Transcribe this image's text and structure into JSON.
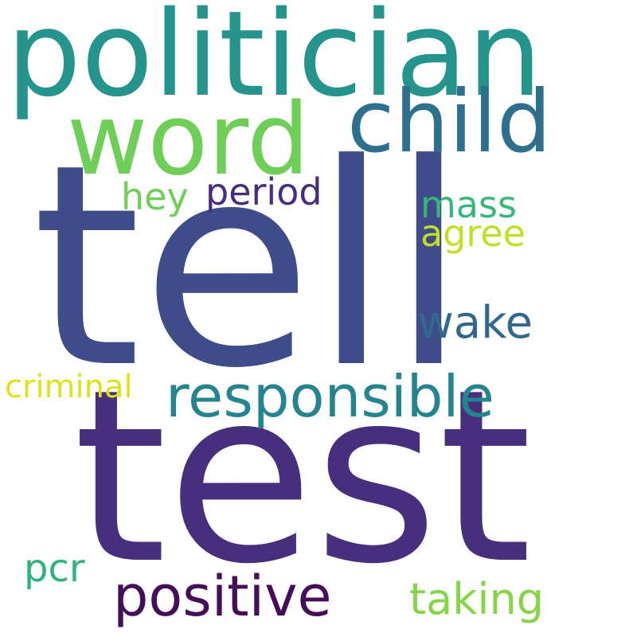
{
  "words": [
    {
      "text": "tell",
      "color": "#3e4c8a"
    },
    {
      "text": "test",
      "color": "#472f7d"
    },
    {
      "text": "politician",
      "color": "#24948c"
    },
    {
      "text": "word",
      "color": "#6ece58"
    },
    {
      "text": "child",
      "color": "#2d708e"
    },
    {
      "text": "responsible",
      "color": "#25858e"
    },
    {
      "text": "positive",
      "color": "#440f58"
    },
    {
      "text": "wake",
      "color": "#31688e"
    },
    {
      "text": "period",
      "color": "#472d7b"
    },
    {
      "text": "hey",
      "color": "#6ece58"
    },
    {
      "text": "mass",
      "color": "#35b779"
    },
    {
      "text": "agree",
      "color": "#c2df23"
    },
    {
      "text": "criminal",
      "color": "#dde318"
    },
    {
      "text": "pcr",
      "color": "#2fb47c"
    },
    {
      "text": "taking",
      "color": "#86d549"
    }
  ]
}
